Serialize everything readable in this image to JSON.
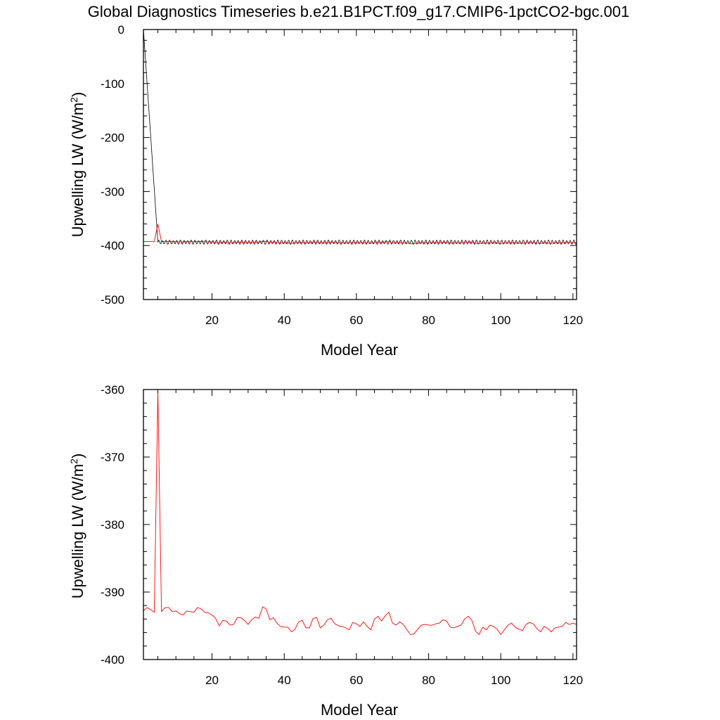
{
  "figure": {
    "title": "Global Diagnostics Timeseries b.e21.B1PCT.f09_g17.CMIP6-1pctCO2-bgc.001"
  },
  "colors": {
    "series_red": "#ff0000",
    "series_black": "#000000",
    "axis": "#000000"
  },
  "chart_data": [
    {
      "type": "line",
      "xlabel": "Model Year",
      "ylabel": "Upwelling LW (W/m2)",
      "xlim": [
        1,
        121
      ],
      "ylim": [
        -500,
        0
      ],
      "x_ticks": [
        20,
        40,
        60,
        80,
        100,
        120
      ],
      "y_ticks": [
        0,
        -100,
        -200,
        -300,
        -400,
        -500
      ],
      "grid": false,
      "series": [
        {
          "color": "#000000",
          "resolution": "monthly",
          "x_start": 1,
          "x_end": 121,
          "values": [
            0,
            -393.8
          ],
          "note_values": "sharp drop from 0 at year 1 to about -394 near year 5, then seasonal oscillation between about -391 and -398 through year 121"
        },
        {
          "color": "#ff0000",
          "resolution": "annual",
          "x": [
            1,
            2,
            3,
            4,
            5,
            6,
            7,
            8,
            9,
            10,
            11,
            12,
            13,
            14,
            15,
            16,
            17,
            18,
            19,
            20,
            21,
            22,
            23,
            24,
            25,
            26,
            27,
            28,
            29,
            30,
            31,
            32,
            33,
            34,
            35,
            36,
            37,
            38,
            39,
            40,
            41,
            42,
            43,
            44,
            45,
            46,
            47,
            48,
            49,
            50,
            51,
            52,
            53,
            54,
            55,
            56,
            57,
            58,
            59,
            60,
            61,
            62,
            63,
            64,
            65,
            66,
            67,
            68,
            69,
            70,
            71,
            72,
            73,
            74,
            75,
            76,
            77,
            78,
            79,
            80,
            81,
            82,
            83,
            84,
            85,
            86,
            87,
            88,
            89,
            90,
            91,
            92,
            93,
            94,
            95,
            96,
            97,
            98,
            99,
            100,
            101,
            102,
            103,
            104,
            105,
            106,
            107,
            108,
            109,
            110,
            111,
            112,
            113,
            114,
            115,
            116,
            117,
            118,
            119,
            120,
            121
          ],
          "values": [
            -392.8,
            -392.3,
            -392.6,
            -393.0,
            -360.3,
            -392.9,
            -392.3,
            -392.3,
            -392.9,
            -392.8,
            -393.2,
            -393.4,
            -392.8,
            -392.9,
            -393.0,
            -392.3,
            -392.5,
            -393.0,
            -393.1,
            -393.4,
            -393.9,
            -395.0,
            -394.2,
            -394.3,
            -394.9,
            -394.8,
            -393.8,
            -393.8,
            -394.2,
            -394.8,
            -394.1,
            -393.7,
            -393.9,
            -392.2,
            -392.5,
            -394.1,
            -393.8,
            -394.6,
            -395.1,
            -395.2,
            -395.2,
            -395.9,
            -395.5,
            -394.4,
            -394.2,
            -395.3,
            -395.3,
            -393.9,
            -393.8,
            -395.3,
            -394.9,
            -394.1,
            -393.9,
            -394.7,
            -395.0,
            -395.1,
            -395.3,
            -395.6,
            -394.5,
            -394.7,
            -395.1,
            -394.4,
            -395.1,
            -395.6,
            -394.0,
            -393.6,
            -394.3,
            -393.5,
            -393.0,
            -394.6,
            -394.9,
            -394.4,
            -394.8,
            -395.6,
            -396.3,
            -396.2,
            -395.5,
            -394.9,
            -394.8,
            -394.9,
            -394.9,
            -394.7,
            -394.6,
            -394.1,
            -394.3,
            -395.2,
            -395.3,
            -395.1,
            -394.9,
            -394.0,
            -393.6,
            -394.2,
            -395.8,
            -396.3,
            -395.2,
            -395.6,
            -394.9,
            -395.1,
            -395.5,
            -396.3,
            -395.6,
            -394.9,
            -394.6,
            -395.2,
            -395.5,
            -395.7,
            -394.8,
            -394.5,
            -394.7,
            -395.4,
            -395.9,
            -395.1,
            -395.4,
            -395.9,
            -395.3,
            -395.2,
            -395.1,
            -394.5,
            -394.8,
            -394.6,
            -394.8
          ]
        }
      ]
    },
    {
      "type": "line",
      "xlabel": "Model Year",
      "ylabel": "Upwelling LW (W/m2)",
      "xlim": [
        1,
        121
      ],
      "ylim": [
        -400,
        -360
      ],
      "x_ticks": [
        20,
        40,
        60,
        80,
        100,
        120
      ],
      "y_ticks": [
        -360,
        -370,
        -380,
        -390,
        -400
      ],
      "grid": false,
      "series": [
        {
          "color": "#ff0000",
          "resolution": "annual",
          "x": [
            1,
            2,
            3,
            4,
            5,
            6,
            7,
            8,
            9,
            10,
            11,
            12,
            13,
            14,
            15,
            16,
            17,
            18,
            19,
            20,
            21,
            22,
            23,
            24,
            25,
            26,
            27,
            28,
            29,
            30,
            31,
            32,
            33,
            34,
            35,
            36,
            37,
            38,
            39,
            40,
            41,
            42,
            43,
            44,
            45,
            46,
            47,
            48,
            49,
            50,
            51,
            52,
            53,
            54,
            55,
            56,
            57,
            58,
            59,
            60,
            61,
            62,
            63,
            64,
            65,
            66,
            67,
            68,
            69,
            70,
            71,
            72,
            73,
            74,
            75,
            76,
            77,
            78,
            79,
            80,
            81,
            82,
            83,
            84,
            85,
            86,
            87,
            88,
            89,
            90,
            91,
            92,
            93,
            94,
            95,
            96,
            97,
            98,
            99,
            100,
            101,
            102,
            103,
            104,
            105,
            106,
            107,
            108,
            109,
            110,
            111,
            112,
            113,
            114,
            115,
            116,
            117,
            118,
            119,
            120,
            121
          ],
          "values": [
            -392.8,
            -392.3,
            -392.6,
            -393.0,
            -360.3,
            -392.9,
            -392.3,
            -392.3,
            -392.9,
            -392.8,
            -393.2,
            -393.4,
            -392.8,
            -392.9,
            -393.0,
            -392.3,
            -392.5,
            -393.0,
            -393.1,
            -393.4,
            -393.9,
            -395.0,
            -394.2,
            -394.3,
            -394.9,
            -394.8,
            -393.8,
            -393.8,
            -394.2,
            -394.8,
            -394.1,
            -393.7,
            -393.9,
            -392.2,
            -392.5,
            -394.1,
            -393.8,
            -394.6,
            -395.1,
            -395.2,
            -395.2,
            -395.9,
            -395.5,
            -394.4,
            -394.2,
            -395.3,
            -395.3,
            -393.9,
            -393.8,
            -395.3,
            -394.9,
            -394.1,
            -393.9,
            -394.7,
            -395.0,
            -395.1,
            -395.3,
            -395.6,
            -394.5,
            -394.7,
            -395.1,
            -394.4,
            -395.1,
            -395.6,
            -394.0,
            -393.6,
            -394.3,
            -393.5,
            -393.0,
            -394.6,
            -394.9,
            -394.4,
            -394.8,
            -395.6,
            -396.3,
            -396.2,
            -395.5,
            -394.9,
            -394.8,
            -394.9,
            -394.9,
            -394.7,
            -394.6,
            -394.1,
            -394.3,
            -395.2,
            -395.3,
            -395.1,
            -394.9,
            -394.0,
            -393.6,
            -394.2,
            -395.8,
            -396.3,
            -395.2,
            -395.6,
            -394.9,
            -395.1,
            -395.5,
            -396.3,
            -395.6,
            -394.9,
            -394.6,
            -395.2,
            -395.5,
            -395.7,
            -394.8,
            -394.5,
            -394.7,
            -395.4,
            -395.9,
            -395.1,
            -395.4,
            -395.9,
            -395.3,
            -395.2,
            -395.1,
            -394.5,
            -394.8,
            -394.6,
            -394.8
          ]
        }
      ]
    }
  ]
}
